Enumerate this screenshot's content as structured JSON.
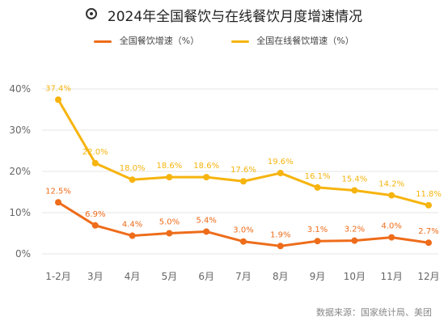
{
  "title": "2024年全国餐饮与在线餐饮月度增速情况",
  "source": "数据来源：国家统计局、美团",
  "chart_data": {
    "type": "line",
    "categories": [
      "1-2月",
      "3月",
      "4月",
      "5月",
      "6月",
      "7月",
      "8月",
      "9月",
      "10月",
      "11月",
      "12月"
    ],
    "series": [
      {
        "name": "全国餐饮增速（%）",
        "color": "#EE6C1A",
        "values": [
          12.5,
          6.9,
          4.4,
          5.0,
          5.4,
          3.0,
          1.9,
          3.1,
          3.2,
          4.0,
          2.7
        ],
        "labels": [
          "12.5%",
          "6.9%",
          "4.4%",
          "5.0%",
          "5.4%",
          "3.0%",
          "1.9%",
          "3.1%",
          "3.2%",
          "4.0%",
          "2.7%"
        ]
      },
      {
        "name": "全国在线餐饮增速（%）",
        "color": "#F6B40E",
        "values": [
          37.4,
          22.0,
          18.0,
          18.6,
          18.6,
          17.6,
          19.6,
          16.1,
          15.4,
          14.2,
          11.8
        ],
        "labels": [
          "37.4%",
          "22.0%",
          "18.0%",
          "18.6%",
          "18.6%",
          "17.6%",
          "19.6%",
          "16.1%",
          "15.4%",
          "14.2%",
          "11.8%"
        ]
      }
    ],
    "ylim": [
      0,
      40
    ],
    "yticks": [
      0,
      10,
      20,
      30,
      40
    ],
    "ytick_labels": [
      "0%",
      "10%",
      "20%",
      "30%",
      "40%"
    ],
    "grid": true,
    "legend": "top-center"
  }
}
